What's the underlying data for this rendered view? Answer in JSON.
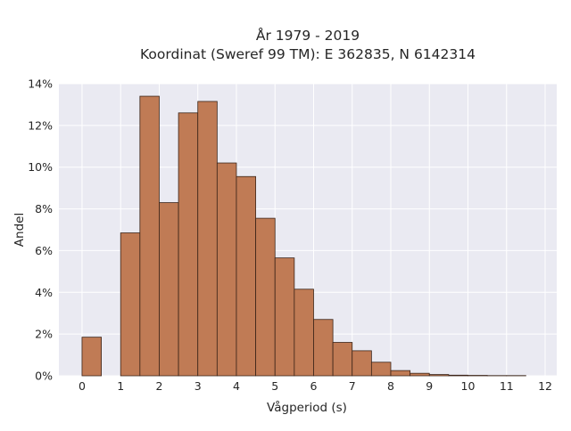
{
  "chart_data": {
    "type": "bar",
    "title": "År 1979 - 2019",
    "subtitle": "Koordinat (Sweref 99 TM): E 362835, N 6142314",
    "xlabel": "Vågperiod (s)",
    "ylabel": "Andel",
    "xlim": [
      -0.6,
      12.3
    ],
    "ylim": [
      0,
      14
    ],
    "x_ticks": [
      0,
      1,
      2,
      3,
      4,
      5,
      6,
      7,
      8,
      9,
      10,
      11,
      12
    ],
    "x_tick_labels": [
      "0",
      "1",
      "2",
      "3",
      "4",
      "5",
      "6",
      "7",
      "8",
      "9",
      "10",
      "11",
      "12"
    ],
    "y_ticks": [
      0,
      2,
      4,
      6,
      8,
      10,
      12,
      14
    ],
    "y_tick_labels": [
      "0%",
      "2%",
      "4%",
      "6%",
      "8%",
      "10%",
      "12%",
      "14%"
    ],
    "bin_width": 0.5,
    "bin_starts": [
      0,
      1,
      1.5,
      2,
      2.5,
      3,
      3.5,
      4,
      4.5,
      5,
      5.5,
      6,
      6.5,
      7,
      7.5,
      8,
      8.5,
      9,
      9.5,
      10,
      10.5,
      11,
      11.5
    ],
    "values": [
      1.85,
      6.85,
      13.4,
      8.3,
      12.6,
      13.15,
      10.2,
      9.55,
      7.55,
      5.65,
      4.15,
      2.7,
      1.6,
      1.2,
      0.65,
      0.25,
      0.12,
      0.06,
      0.03,
      0.02,
      0.01,
      0.01,
      0.0
    ],
    "bar_color": "#c07b55",
    "bar_edge_color": "#3b2418",
    "background_color": "#eaeaf2",
    "grid": true,
    "grid_color": "#ffffff"
  }
}
